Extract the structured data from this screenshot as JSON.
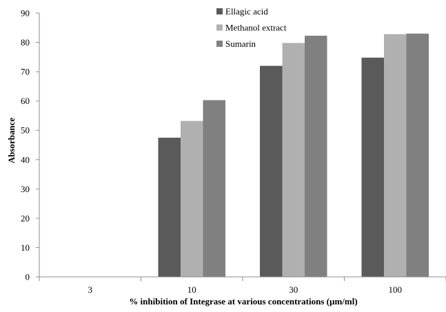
{
  "chart_data": {
    "type": "bar",
    "title": "",
    "xlabel": "% inhibition of Integrase at various concentrations (µm/ml)",
    "ylabel": "Absorbance",
    "categories": [
      "3",
      "10",
      "30",
      "100"
    ],
    "ylim": [
      0,
      90
    ],
    "yticks": [
      0,
      10,
      20,
      30,
      40,
      50,
      60,
      70,
      80,
      90
    ],
    "grid": false,
    "legend_position": "top-center",
    "series": [
      {
        "name": "Ellagic acid",
        "color": "#5a5a5a",
        "values": [
          null,
          47.5,
          72,
          74.8
        ]
      },
      {
        "name": "Methanol extract",
        "color": "#b0b0b0",
        "values": [
          null,
          53.2,
          79.8,
          82.8
        ]
      },
      {
        "name": "Sumarin",
        "color": "#808080",
        "values": [
          null,
          60.3,
          82.3,
          83
        ]
      }
    ]
  }
}
